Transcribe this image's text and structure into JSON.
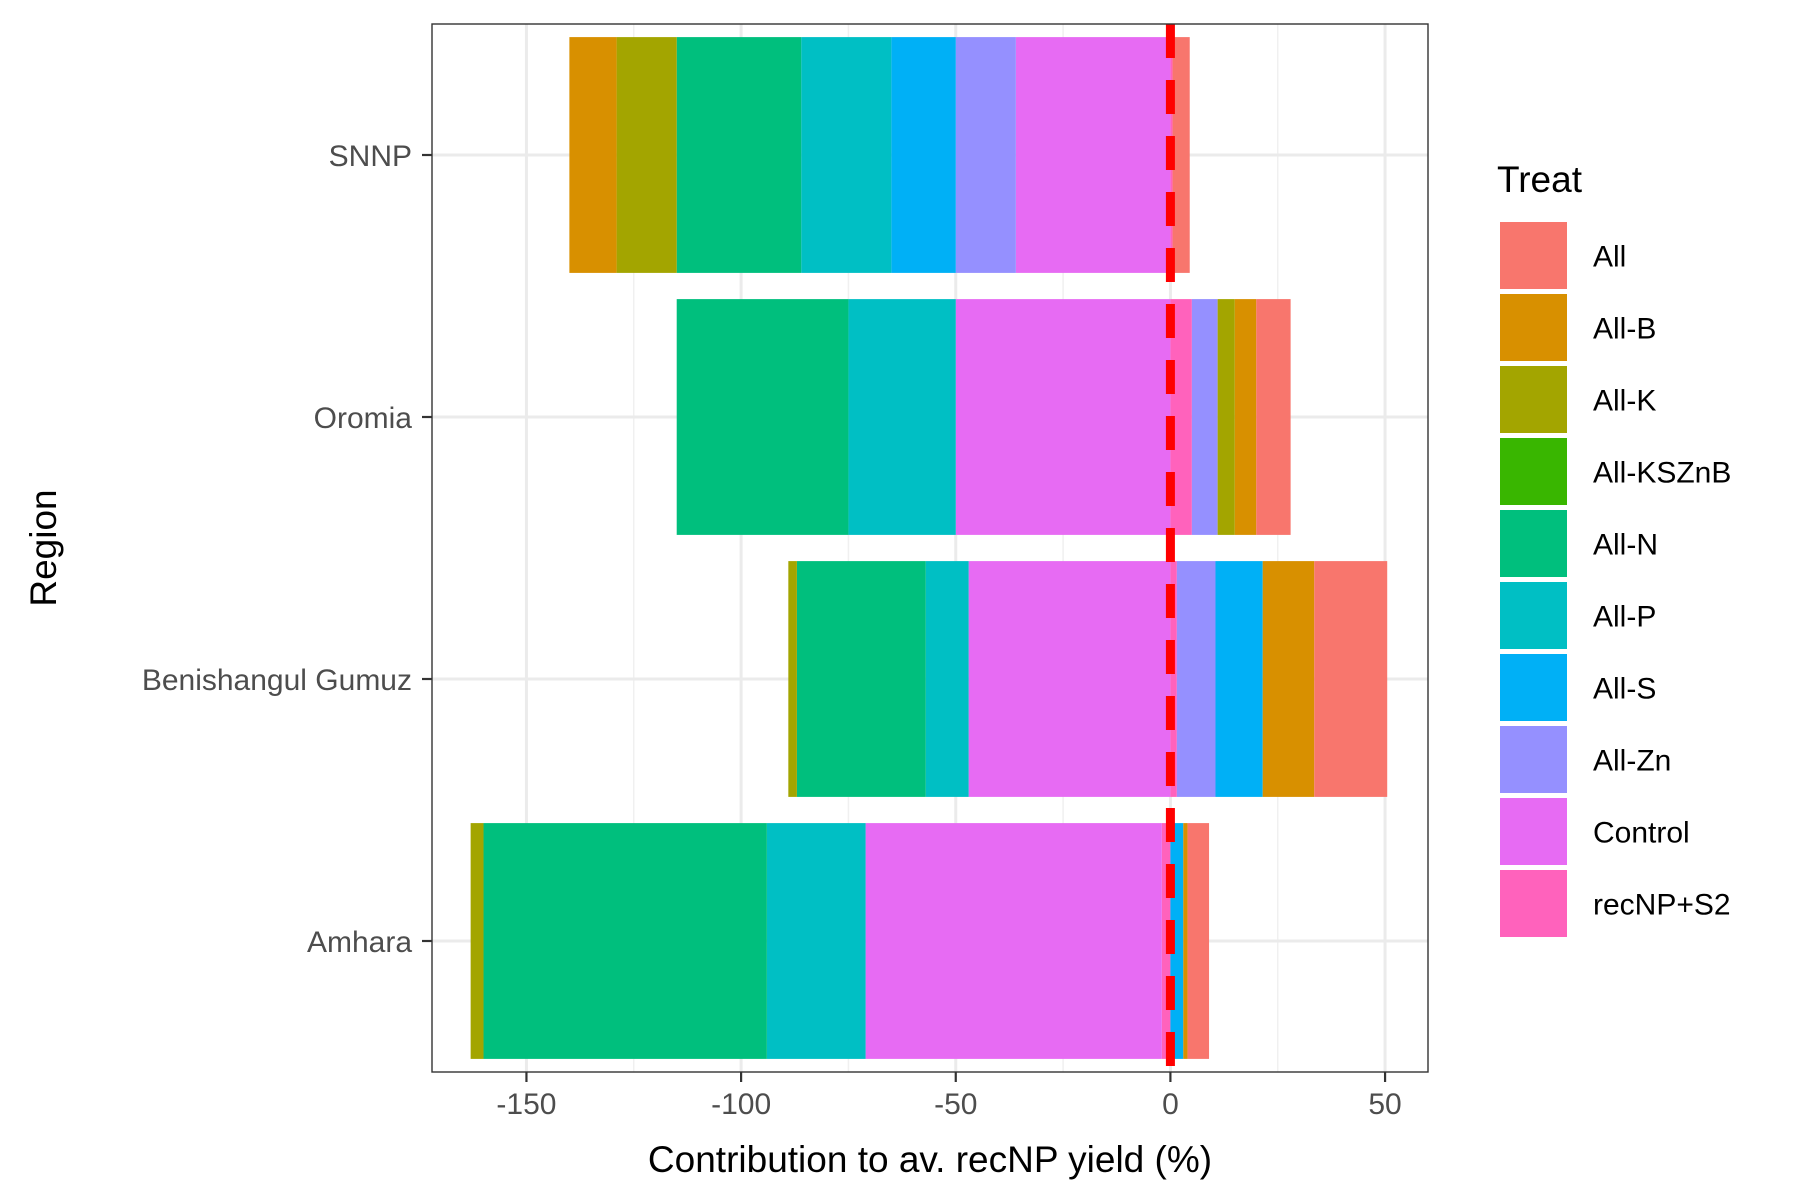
{
  "chart_data": {
    "type": "bar",
    "orientation": "horizontal",
    "stacked": true,
    "diverging": true,
    "xlabel": "Contribution to av. recNP yield (%)",
    "ylabel": "Region",
    "xlim": [
      -172,
      60
    ],
    "xticks": [
      -150,
      -100,
      -50,
      0,
      50
    ],
    "xtick_labels": [
      "-150",
      "-100",
      "-50",
      "0",
      "50"
    ],
    "grid": true,
    "categories": [
      "Amhara",
      "Benishangul Gumuz",
      "Oromia",
      "SNNP"
    ],
    "legend": {
      "title": "Treat",
      "position": "right",
      "items": [
        "All",
        "All-B",
        "All-K",
        "All-KSZnB",
        "All-N",
        "All-P",
        "All-S",
        "All-Zn",
        "Control",
        "recNP+S2"
      ]
    },
    "colors": {
      "All": "#F8766D",
      "All-B": "#D89000",
      "All-K": "#A3A500",
      "All-KSZnB": "#39B600",
      "All-N": "#00BF7D",
      "All-P": "#00BFC4",
      "All-S": "#00B0F6",
      "All-Zn": "#9590FF",
      "Control": "#E76BF3",
      "recNP+S2": "#FF62BC"
    },
    "reference_line": {
      "x": 0,
      "color": "#FF0000",
      "style": "dashed"
    },
    "series": [
      {
        "name": "All",
        "values": [
          5,
          17,
          8,
          4
        ]
      },
      {
        "name": "All-B",
        "values": [
          1,
          12,
          5,
          -11
        ]
      },
      {
        "name": "All-K",
        "values": [
          -3,
          -2,
          4,
          -14
        ]
      },
      {
        "name": "All-KSZnB",
        "values": [
          0,
          0,
          0,
          0
        ]
      },
      {
        "name": "All-N",
        "values": [
          -66,
          -30,
          -40,
          -29
        ]
      },
      {
        "name": "All-P",
        "values": [
          -23,
          -10,
          -25,
          -21
        ]
      },
      {
        "name": "All-S",
        "values": [
          3,
          11,
          0,
          -15
        ]
      },
      {
        "name": "All-Zn",
        "values": [
          0,
          9,
          6,
          -14
        ]
      },
      {
        "name": "Control",
        "values": [
          -69,
          -47,
          -50,
          -36
        ]
      },
      {
        "name": "recNP+S2",
        "values": [
          -2,
          1.5,
          5,
          0.5
        ]
      }
    ]
  }
}
